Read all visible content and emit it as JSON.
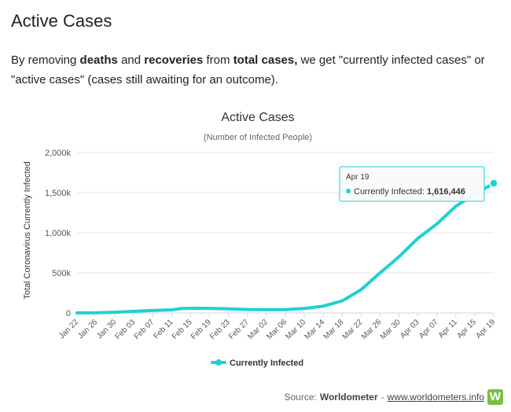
{
  "page": {
    "heading": "Active Cases",
    "intro": {
      "p1": "By removing ",
      "b1": "deaths",
      "p2": " and ",
      "b2": "recoveries",
      "p3": " from ",
      "b3": "total cases,",
      "p4": " we get \"currently infected cases\" or \"active cases\" (cases still awaiting for an outcome)."
    }
  },
  "chart_data": {
    "type": "line",
    "title": "Active Cases",
    "subtitle": "(Number of Infected People)",
    "ylabel": "Total Coronavirus Currently Infected",
    "xlabel": "",
    "ylim": [
      0,
      2000000
    ],
    "y_ticks": [
      "0",
      "500k",
      "1,000k",
      "1,500k",
      "2,000k"
    ],
    "x_ticks": [
      "Jan 22",
      "Jan 26",
      "Jan 30",
      "Feb 03",
      "Feb 07",
      "Feb 11",
      "Feb 15",
      "Feb 19",
      "Feb 23",
      "Feb 27",
      "Mar 02",
      "Mar 06",
      "Mar 10",
      "Mar 14",
      "Mar 18",
      "Mar 22",
      "Mar 26",
      "Mar 30",
      "Apr 03",
      "Apr 07",
      "Apr 11",
      "Apr 15",
      "Apr 19"
    ],
    "grid": true,
    "legend_position": "bottom-center",
    "color": "#1fd1d1",
    "series": [
      {
        "name": "Currently Infected",
        "x": [
          "Jan 22",
          "Jan 26",
          "Jan 30",
          "Feb 03",
          "Feb 07",
          "Feb 11",
          "Feb 13",
          "Feb 15",
          "Feb 19",
          "Feb 23",
          "Feb 27",
          "Mar 02",
          "Mar 06",
          "Mar 10",
          "Mar 14",
          "Mar 18",
          "Mar 22",
          "Mar 26",
          "Mar 30",
          "Apr 03",
          "Apr 07",
          "Apr 11",
          "Apr 15",
          "Apr 19"
        ],
        "values": [
          500,
          2000,
          9000,
          20000,
          30000,
          38000,
          55000,
          58000,
          57000,
          52000,
          43000,
          40000,
          42000,
          55000,
          85000,
          150000,
          290000,
          500000,
          700000,
          930000,
          1110000,
          1330000,
          1480000,
          1616446
        ]
      }
    ],
    "tooltip": {
      "date": "Apr 19",
      "label": "Currently Infected:",
      "value": "1,616,446"
    }
  },
  "footer": {
    "source_prefix": "Source:",
    "source_name": "Worldometer",
    "separator": "-",
    "source_link": "www.worldometers.info",
    "logo_letter": "W"
  }
}
